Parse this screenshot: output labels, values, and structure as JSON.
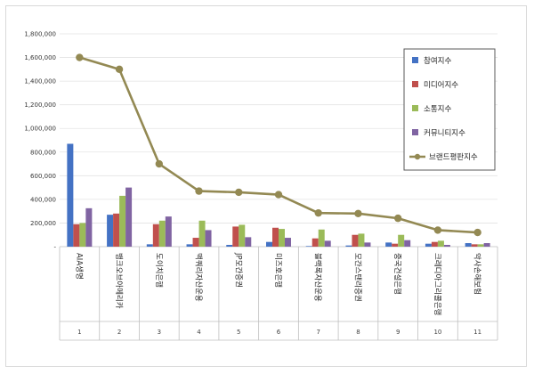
{
  "chart_data": {
    "type": "bar",
    "categories": [
      "AIA생명",
      "뱅크오브아메리카",
      "도이치은행",
      "맥쿼리자산운용",
      "JP모간증권",
      "미즈호은행",
      "블랙록자산운용",
      "모간스탠리증권",
      "중국건설은행",
      "크레디아그리콜은행",
      "악사손해보험"
    ],
    "category_index": [
      "1",
      "2",
      "3",
      "4",
      "5",
      "6",
      "7",
      "8",
      "9",
      "10",
      "11"
    ],
    "series": [
      {
        "name": "참여지수",
        "color": "#4472c4",
        "values": [
          870000,
          270000,
          20000,
          20000,
          15000,
          40000,
          5000,
          10000,
          35000,
          25000,
          30000
        ]
      },
      {
        "name": "미디어지수",
        "color": "#c0504d",
        "values": [
          190000,
          280000,
          190000,
          75000,
          170000,
          160000,
          70000,
          100000,
          25000,
          40000,
          20000
        ]
      },
      {
        "name": "소통지수",
        "color": "#9bbb59",
        "values": [
          200000,
          430000,
          220000,
          220000,
          185000,
          150000,
          145000,
          110000,
          100000,
          50000,
          20000
        ]
      },
      {
        "name": "커뮤니티지수",
        "color": "#8064a2",
        "values": [
          325000,
          500000,
          255000,
          140000,
          80000,
          75000,
          50000,
          35000,
          55000,
          15000,
          30000
        ]
      }
    ],
    "line_series": {
      "name": "브랜드평판지수",
      "color": "#938953",
      "values": [
        1600000,
        1500000,
        700000,
        470000,
        460000,
        440000,
        285000,
        280000,
        240000,
        140000,
        120000
      ]
    },
    "y_ticks": [
      "-",
      "200,000",
      "400,000",
      "600,000",
      "800,000",
      "1,000,000",
      "1,200,000",
      "1,400,000",
      "1,600,000",
      "1,800,000"
    ],
    "ylim": [
      0,
      1800000
    ],
    "grid": true,
    "legend_position": "right"
  }
}
